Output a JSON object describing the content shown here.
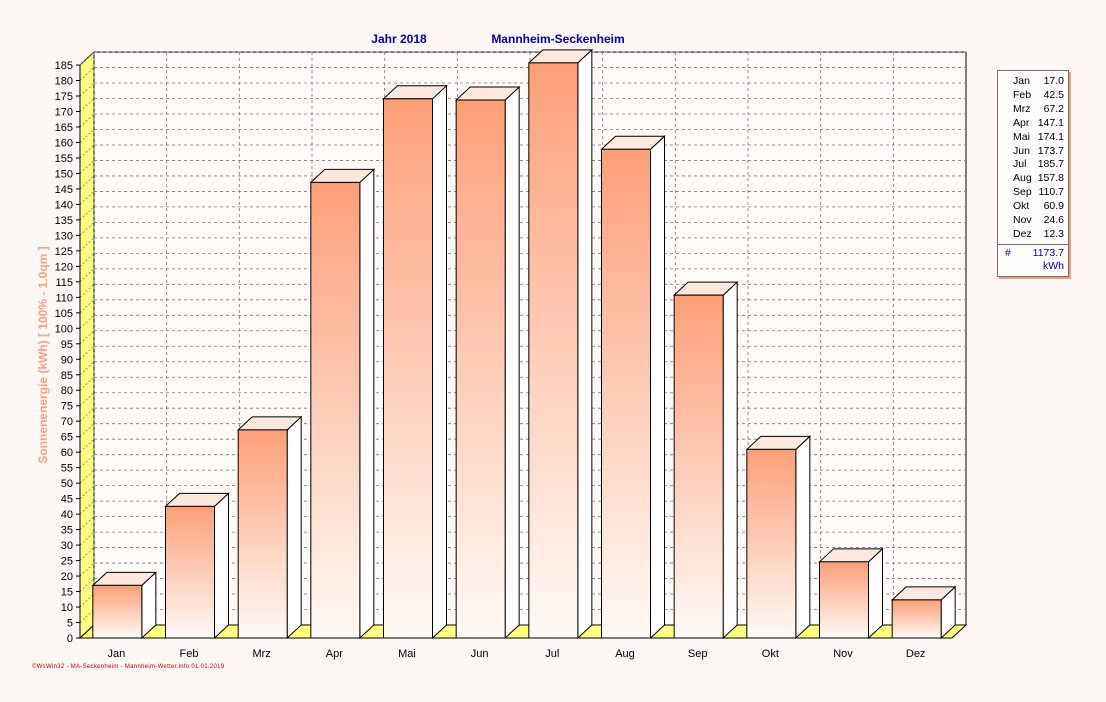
{
  "chart_data": {
    "type": "bar",
    "title": "Jahr  2018",
    "subtitle": "Mannheim-Seckenheim",
    "ylabel": "Sonnenenergie  (kWh)     [ 100% - 1.0qm ]",
    "xlabel": "",
    "categories": [
      "Jan",
      "Feb",
      "Mrz",
      "Apr",
      "Mai",
      "Jun",
      "Jul",
      "Aug",
      "Sep",
      "Okt",
      "Nov",
      "Dez"
    ],
    "values": [
      17.0,
      42.5,
      67.2,
      147.1,
      174.1,
      173.7,
      185.7,
      157.8,
      110.7,
      60.9,
      24.6,
      12.3
    ],
    "ylim": [
      0,
      185
    ],
    "ytick_step": 5,
    "grid": true,
    "legend_placement": "right",
    "colors": {
      "bar_top": "#fd9f78",
      "bar_bottom": "#fffaf6",
      "bar_cap": "#ffe8dd",
      "bar_side": "#ffffff",
      "title": "#0000a8",
      "ylabel": "#ff9e7e",
      "wall": "#ffff80",
      "grid": "#7a7a7a"
    }
  },
  "legend": {
    "values": [
      "17.0",
      "42.5",
      "67.2",
      "147.1",
      "174.1",
      "173.7",
      "185.7",
      "157.8",
      "110.7",
      "60.9",
      "24.6",
      "12.3"
    ],
    "total_symbol": "#",
    "total": "1173.7",
    "unit": "kWh"
  },
  "footer": "©WsWin32 - MA-Seckenheim - Mannheim-Wetter.info 01.01.2019"
}
